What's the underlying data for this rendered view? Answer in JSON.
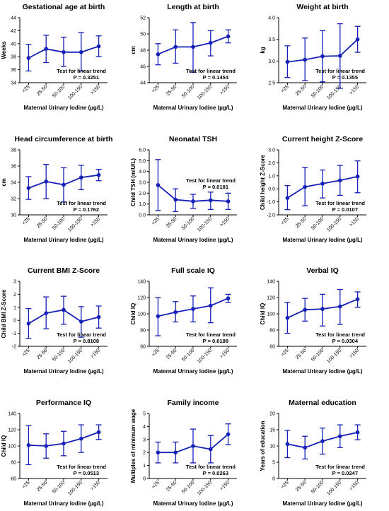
{
  "chart_data": [
    {
      "type": "line",
      "title": "Gestational age at birth",
      "xlabel": "Maternal Urinary Iodine (µg/L)",
      "ylabel": "Weeks",
      "categories": [
        "<25",
        "25-50",
        "50-100",
        "100-150",
        ">150"
      ],
      "ylim": [
        34,
        44
      ],
      "yticks": [
        "34",
        "36",
        "38",
        "40",
        "42",
        "44"
      ],
      "series": [
        {
          "values": [
            37.8,
            39.2,
            38.7,
            38.7,
            39.6
          ],
          "lower": [
            35.8,
            37.1,
            36.5,
            35.8,
            38.0
          ],
          "upper": [
            39.9,
            41.3,
            41.0,
            41.7,
            41.2
          ]
        }
      ],
      "annotation": [
        "Test for linear trend",
        "P = 0.3251"
      ],
      "annotation_position": "bottom-right"
    },
    {
      "type": "line",
      "title": "Length at birth",
      "xlabel": "Maternal Urinary Iodine (µg/L)",
      "ylabel": "cm",
      "categories": [
        "<25",
        "25-50",
        "50-100",
        "100-150",
        ">150"
      ],
      "ylim": [
        44,
        52
      ],
      "yticks": [
        "44",
        "46",
        "48",
        "50",
        "52"
      ],
      "series": [
        {
          "values": [
            47.5,
            48.4,
            48.4,
            48.9,
            49.7
          ],
          "lower": [
            46.2,
            46.4,
            45.3,
            47.3,
            48.9
          ],
          "upper": [
            48.8,
            50.5,
            51.4,
            50.4,
            50.5
          ]
        }
      ],
      "annotation": [
        "Test for linear trend",
        "P = 0.1454"
      ],
      "annotation_position": "bottom-right"
    },
    {
      "type": "line",
      "title": "Weight at birth",
      "xlabel": "Maternal Urinary Iodine (µg/L)",
      "ylabel": "kg",
      "categories": [
        "<25",
        "25-50",
        "50-100",
        "100-150",
        ">150"
      ],
      "ylim": [
        2.5,
        4.0
      ],
      "yticks": [
        "2.5",
        "3.0",
        "3.5",
        "4.0"
      ],
      "series": [
        {
          "values": [
            2.98,
            3.03,
            3.11,
            3.12,
            3.5
          ],
          "lower": [
            2.62,
            2.55,
            2.52,
            2.37,
            3.2
          ],
          "upper": [
            3.35,
            3.53,
            3.7,
            3.86,
            3.8
          ]
        }
      ],
      "annotation": [
        "Test for linear trend",
        "P = 0.1355"
      ],
      "annotation_position": "bottom-right"
    },
    {
      "type": "line",
      "title": "Head circumference at birth",
      "xlabel": "Maternal Urinary Iodine (µg/L)",
      "ylabel": "cm",
      "categories": [
        "<25",
        "25-50",
        "50-100",
        "100-150",
        ">150"
      ],
      "ylim": [
        30,
        38
      ],
      "yticks": [
        "30",
        "32",
        "34",
        "36",
        "38"
      ],
      "series": [
        {
          "values": [
            33.3,
            34.1,
            33.7,
            34.6,
            34.9
          ],
          "lower": [
            31.9,
            32.0,
            31.6,
            33.1,
            34.2
          ],
          "upper": [
            34.7,
            36.2,
            35.8,
            36.1,
            35.6
          ]
        }
      ],
      "annotation": [
        "Test for linear trend",
        "P = 0.1762"
      ],
      "annotation_position": "bottom-right"
    },
    {
      "type": "line",
      "title": "Neonatal TSH",
      "xlabel": "Maternal Urinary Iodine (µg/L)",
      "ylabel": "Child TSH (mIU/L)",
      "categories": [
        "<25",
        "25-50",
        "50-100",
        "100-150",
        ">150"
      ],
      "ylim": [
        0,
        6
      ],
      "yticks": [
        "0.0",
        "1.0",
        "2.0",
        "3.0",
        "4.0",
        "5.0",
        "6.0"
      ],
      "series": [
        {
          "values": [
            2.75,
            1.4,
            1.25,
            1.35,
            1.25
          ],
          "lower": [
            0.4,
            0.3,
            0.6,
            0.5,
            0.5
          ],
          "upper": [
            5.1,
            2.4,
            1.9,
            2.1,
            2.0
          ]
        }
      ],
      "annotation": [
        "Test for linear trend",
        "P = 0.0181"
      ],
      "annotation_position": "top-right"
    },
    {
      "type": "line",
      "title": "Current height Z-Score",
      "xlabel": "Maternal Urinary Iodine (µg/L)",
      "ylabel": "Child height Z-Score",
      "categories": [
        "<25",
        "25-50",
        "50-100",
        "100-150",
        ">150"
      ],
      "ylim": [
        -2,
        3
      ],
      "yticks": [
        "-2.0",
        "-1.0",
        "0.0",
        "1.0",
        "2.0",
        "3.0"
      ],
      "series": [
        {
          "values": [
            -0.7,
            0.15,
            0.4,
            0.65,
            0.95
          ],
          "lower": [
            -1.6,
            -1.3,
            -0.7,
            -0.5,
            -0.3
          ],
          "upper": [
            0.25,
            1.65,
            1.45,
            1.8,
            2.15
          ]
        }
      ],
      "annotation": [
        "Test for linear trend",
        "P = 0.0107"
      ],
      "annotation_position": "bottom-right"
    },
    {
      "type": "line",
      "title": "Current BMI Z-Score",
      "xlabel": "Maternal Urinary Iodine (µg/L)",
      "ylabel": "Child BMI Z-Score",
      "categories": [
        "<25",
        "25-50",
        "50-100",
        "100-150",
        ">150"
      ],
      "ylim": [
        -2,
        3
      ],
      "yticks": [
        "-2",
        "-1",
        "0",
        "1",
        "2",
        "3"
      ],
      "series": [
        {
          "values": [
            -0.25,
            0.55,
            0.8,
            -0.1,
            0.25
          ],
          "lower": [
            -1.4,
            -0.65,
            -0.3,
            -1.3,
            -0.6
          ],
          "upper": [
            0.9,
            1.8,
            1.85,
            1.05,
            1.1
          ]
        }
      ],
      "annotation": [
        "Test for linear trend",
        "P = 0.8108"
      ],
      "annotation_position": "bottom-right"
    },
    {
      "type": "line",
      "title": "Full scale IQ",
      "xlabel": "Maternal Urinary Iodine (µg/L)",
      "ylabel": "Child IQ",
      "categories": [
        "<25",
        "25-50",
        "50-100",
        "100-150",
        ">150"
      ],
      "ylim": [
        60,
        140
      ],
      "yticks": [
        "60",
        "80",
        "100",
        "120",
        "140"
      ],
      "series": [
        {
          "values": [
            97,
            102,
            106,
            110,
            119
          ],
          "lower": [
            73,
            90,
            90,
            89,
            114
          ],
          "upper": [
            120,
            115,
            122,
            132,
            124
          ]
        }
      ],
      "annotation": [
        "Test for linear trend",
        "P = 0.0188"
      ],
      "annotation_position": "bottom-right"
    },
    {
      "type": "line",
      "title": "Verbal IQ",
      "xlabel": "Maternal Urinary Iodine (µg/L)",
      "ylabel": "Child IQ",
      "categories": [
        "<25",
        "25-50",
        "50-100",
        "100-150",
        ">150"
      ],
      "ylim": [
        60,
        140
      ],
      "yticks": [
        "60",
        "80",
        "100",
        "120",
        "140"
      ],
      "series": [
        {
          "values": [
            95,
            105,
            106,
            109,
            118
          ],
          "lower": [
            76,
            91,
            85,
            87,
            108
          ],
          "upper": [
            114,
            119,
            124,
            130,
            127
          ]
        }
      ],
      "annotation": [
        "Test for linear trend",
        "P = 0.0304"
      ],
      "annotation_position": "bottom-right"
    },
    {
      "type": "line",
      "title": "Performance IQ",
      "xlabel": "Maternal Urinary Iodine (µg/L)",
      "ylabel": "Child IQ",
      "categories": [
        "<25",
        "25-50",
        "50-100",
        "100-150",
        ">150"
      ],
      "ylim": [
        60,
        140
      ],
      "yticks": [
        "60",
        "80",
        "100",
        "120",
        "140"
      ],
      "series": [
        {
          "values": [
            101,
            100,
            103,
            109,
            117
          ],
          "lower": [
            77,
            85,
            88,
            92,
            108
          ],
          "upper": [
            125,
            115,
            118,
            126,
            126
          ]
        }
      ],
      "annotation": [
        "Test for linear trend",
        "P = 0.0513"
      ],
      "annotation_position": "bottom-right"
    },
    {
      "type": "line",
      "title": "Family income",
      "xlabel": "Maternal Urinary Iodine (µg/L)",
      "ylabel": "Multiples of minimum wage",
      "categories": [
        "<25",
        "25-50",
        "50-100",
        "100-150",
        ">150"
      ],
      "ylim": [
        0,
        5
      ],
      "yticks": [
        "0",
        "1",
        "2",
        "3",
        "4",
        "5"
      ],
      "series": [
        {
          "values": [
            2.0,
            2.0,
            2.5,
            2.25,
            3.4
          ],
          "lower": [
            1.2,
            1.2,
            1.2,
            1.2,
            2.6
          ],
          "upper": [
            2.8,
            2.8,
            3.8,
            3.3,
            4.2
          ]
        }
      ],
      "annotation": [
        "Test for linear trend",
        "P = 0.0263"
      ],
      "annotation_position": "bottom-right"
    },
    {
      "type": "line",
      "title": "Maternal education",
      "xlabel": "Maternal Urinary Iodine (µg/L)",
      "ylabel": "Years of education",
      "categories": [
        "<25",
        "25-50",
        "50-100",
        "100-150",
        ">150"
      ],
      "ylim": [
        0,
        20
      ],
      "yticks": [
        "0",
        "5",
        "10",
        "15",
        "20"
      ],
      "series": [
        {
          "values": [
            10.6,
            9.5,
            11.5,
            13.0,
            14.2
          ],
          "lower": [
            6.4,
            6.0,
            7.5,
            9.5,
            11.9
          ],
          "upper": [
            14.8,
            13.0,
            15.5,
            16.5,
            16.5
          ]
        }
      ],
      "annotation": [
        "Test for linear trend",
        "P = 0.0247"
      ],
      "annotation_position": "bottom-right"
    }
  ],
  "colors": {
    "series": "#1420b8",
    "axis": "#000000",
    "text": "#000000"
  }
}
